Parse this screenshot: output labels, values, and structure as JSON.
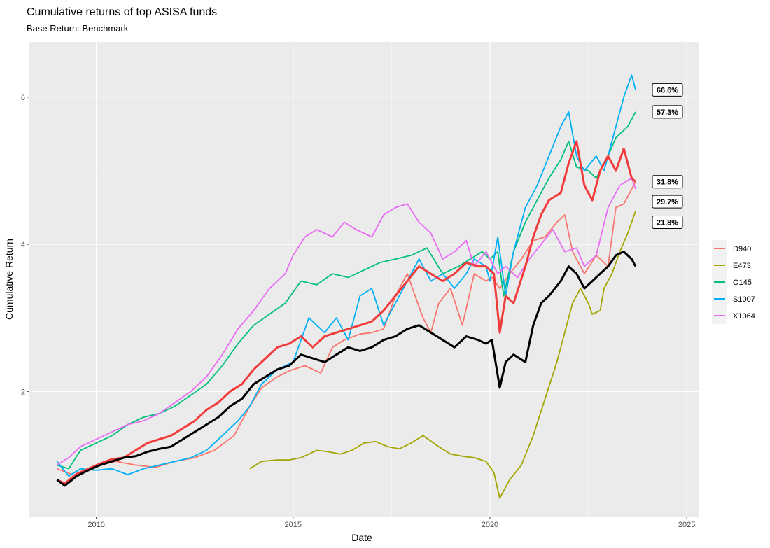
{
  "chart_data": {
    "type": "line",
    "title": "Cumulative returns of top ASISA funds",
    "subtitle": "Base Return: Benchmark",
    "xlabel": "Date",
    "ylabel": "Cumulative Return",
    "xlim": [
      2008.3,
      2025.3
    ],
    "ylim": [
      0.3,
      6.75
    ],
    "x_ticks": [
      2010,
      2015,
      2020,
      2025
    ],
    "y_ticks": [
      2,
      4,
      6
    ],
    "grid": true,
    "legend_position": "right",
    "series": [
      {
        "name": "D940",
        "color": "#F8766D",
        "x": [
          2009.0,
          2009.5,
          2010.0,
          2010.5,
          2011.0,
          2011.5,
          2012.0,
          2012.5,
          2013.0,
          2013.5,
          2013.9,
          2014.2,
          2014.6,
          2014.9,
          2015.3,
          2015.7,
          2016.0,
          2016.3,
          2016.7,
          2017.0,
          2017.3,
          2017.6,
          2017.9,
          2018.1,
          2018.3,
          2018.5,
          2018.7,
          2019.0,
          2019.3,
          2019.6,
          2019.9,
          2020.05,
          2020.25,
          2020.5,
          2020.8,
          2021.1,
          2021.4,
          2021.7,
          2021.9,
          2022.1,
          2022.4,
          2022.7,
          2023.0,
          2023.2,
          2023.4,
          2023.7
        ],
        "values": [
          0.95,
          0.85,
          1.0,
          1.05,
          1.0,
          0.97,
          1.05,
          1.1,
          1.2,
          1.4,
          1.8,
          2.05,
          2.2,
          2.28,
          2.35,
          2.25,
          2.6,
          2.7,
          2.78,
          2.8,
          2.85,
          3.3,
          3.6,
          3.3,
          3.0,
          2.8,
          3.2,
          3.4,
          2.9,
          3.6,
          3.5,
          3.55,
          3.4,
          3.6,
          3.8,
          4.05,
          4.1,
          4.3,
          4.4,
          3.9,
          3.6,
          3.85,
          3.7,
          4.5,
          4.55,
          4.85
        ]
      },
      {
        "name": "E473",
        "color": "#A3A500",
        "x": [
          2013.9,
          2014.2,
          2014.6,
          2014.9,
          2015.2,
          2015.6,
          2015.9,
          2016.2,
          2016.5,
          2016.8,
          2017.1,
          2017.4,
          2017.7,
          2018.0,
          2018.3,
          2018.7,
          2019.0,
          2019.3,
          2019.6,
          2019.9,
          2020.1,
          2020.25,
          2020.5,
          2020.8,
          2021.1,
          2021.4,
          2021.7,
          2021.9,
          2022.1,
          2022.3,
          2022.5,
          2022.6,
          2022.8,
          2022.9,
          2023.1,
          2023.3,
          2023.5,
          2023.7
        ],
        "values": [
          0.95,
          1.05,
          1.07,
          1.07,
          1.1,
          1.2,
          1.18,
          1.15,
          1.2,
          1.3,
          1.32,
          1.25,
          1.22,
          1.3,
          1.4,
          1.25,
          1.15,
          1.12,
          1.1,
          1.05,
          0.9,
          0.55,
          0.8,
          1.0,
          1.4,
          1.9,
          2.4,
          2.8,
          3.2,
          3.4,
          3.2,
          3.05,
          3.1,
          3.4,
          3.6,
          3.9,
          4.15,
          4.45
        ]
      },
      {
        "name": "O145",
        "color": "#00BF7D",
        "x": [
          2009.0,
          2009.3,
          2009.6,
          2010.0,
          2010.4,
          2010.8,
          2011.2,
          2011.6,
          2012.0,
          2012.4,
          2012.8,
          2013.2,
          2013.6,
          2014.0,
          2014.4,
          2014.8,
          2015.2,
          2015.6,
          2016.0,
          2016.4,
          2016.8,
          2017.2,
          2017.6,
          2018.0,
          2018.4,
          2018.8,
          2019.2,
          2019.5,
          2019.8,
          2020.0,
          2020.2,
          2020.35,
          2020.6,
          2020.9,
          2021.2,
          2021.5,
          2021.8,
          2022.0,
          2022.2,
          2022.5,
          2022.7,
          2023.0,
          2023.2,
          2023.5,
          2023.7
        ],
        "values": [
          1.0,
          0.95,
          1.2,
          1.3,
          1.4,
          1.55,
          1.65,
          1.7,
          1.8,
          1.95,
          2.1,
          2.35,
          2.65,
          2.9,
          3.05,
          3.2,
          3.5,
          3.45,
          3.6,
          3.55,
          3.65,
          3.75,
          3.8,
          3.85,
          3.95,
          3.6,
          3.7,
          3.8,
          3.9,
          3.8,
          3.9,
          3.3,
          3.9,
          4.3,
          4.6,
          4.9,
          5.15,
          5.4,
          5.05,
          5.0,
          4.9,
          5.2,
          5.45,
          5.6,
          5.8
        ]
      },
      {
        "name": "S1007",
        "color": "#00B0F6",
        "x": [
          2009.0,
          2009.3,
          2009.6,
          2010.0,
          2010.4,
          2010.8,
          2011.2,
          2011.6,
          2012.0,
          2012.4,
          2012.8,
          2013.2,
          2013.6,
          2013.9,
          2014.2,
          2014.6,
          2015.0,
          2015.4,
          2015.8,
          2016.1,
          2016.4,
          2016.7,
          2017.0,
          2017.3,
          2017.6,
          2017.9,
          2018.2,
          2018.5,
          2018.8,
          2019.1,
          2019.4,
          2019.6,
          2019.9,
          2020.0,
          2020.2,
          2020.4,
          2020.6,
          2020.9,
          2021.2,
          2021.5,
          2021.8,
          2022.0,
          2022.2,
          2022.4,
          2022.7,
          2022.9,
          2023.2,
          2023.4,
          2023.6,
          2023.7
        ],
        "values": [
          1.05,
          0.85,
          0.95,
          0.93,
          0.95,
          0.87,
          0.95,
          1.0,
          1.05,
          1.1,
          1.2,
          1.4,
          1.6,
          1.8,
          2.1,
          2.3,
          2.4,
          3.0,
          2.8,
          3.0,
          2.7,
          3.3,
          3.4,
          2.9,
          3.2,
          3.5,
          3.8,
          3.5,
          3.6,
          3.4,
          3.6,
          3.8,
          3.7,
          3.5,
          4.1,
          3.3,
          3.9,
          4.5,
          4.8,
          5.2,
          5.6,
          5.8,
          5.2,
          5.0,
          5.2,
          5.0,
          5.6,
          6.0,
          6.3,
          6.1
        ]
      },
      {
        "name": "X1064",
        "color": "#E76BF3",
        "x": [
          2009.0,
          2009.3,
          2009.6,
          2010.0,
          2010.4,
          2010.8,
          2011.2,
          2011.6,
          2012.0,
          2012.4,
          2012.8,
          2013.2,
          2013.6,
          2014.0,
          2014.4,
          2014.8,
          2015.0,
          2015.3,
          2015.6,
          2016.0,
          2016.3,
          2016.6,
          2017.0,
          2017.3,
          2017.6,
          2017.9,
          2018.2,
          2018.5,
          2018.8,
          2019.1,
          2019.4,
          2019.6,
          2019.9,
          2020.2,
          2020.4,
          2020.7,
          2021.0,
          2021.3,
          2021.6,
          2021.9,
          2022.2,
          2022.4,
          2022.7,
          2023.0,
          2023.3,
          2023.6,
          2023.7
        ],
        "values": [
          1.0,
          1.1,
          1.25,
          1.35,
          1.45,
          1.55,
          1.6,
          1.7,
          1.85,
          2.0,
          2.2,
          2.5,
          2.85,
          3.1,
          3.4,
          3.6,
          3.85,
          4.1,
          4.2,
          4.1,
          4.3,
          4.2,
          4.1,
          4.4,
          4.5,
          4.55,
          4.3,
          4.15,
          3.8,
          3.9,
          4.05,
          3.7,
          3.9,
          3.6,
          3.7,
          3.55,
          3.8,
          4.0,
          4.2,
          3.9,
          3.95,
          3.7,
          3.85,
          4.5,
          4.8,
          4.9,
          4.75
        ]
      },
      {
        "name": "",
        "color": "#F23C3C",
        "width": 3,
        "x": [
          2009.0,
          2009.2,
          2009.5,
          2009.8,
          2010.1,
          2010.4,
          2010.7,
          2011.0,
          2011.3,
          2011.6,
          2011.9,
          2012.2,
          2012.5,
          2012.8,
          2013.1,
          2013.4,
          2013.7,
          2014.0,
          2014.3,
          2014.6,
          2014.9,
          2015.2,
          2015.5,
          2015.8,
          2016.1,
          2016.4,
          2016.7,
          2017.0,
          2017.3,
          2017.6,
          2017.9,
          2018.2,
          2018.5,
          2018.8,
          2019.1,
          2019.4,
          2019.7,
          2019.9,
          2020.1,
          2020.25,
          2020.4,
          2020.6,
          2020.9,
          2021.1,
          2021.3,
          2021.5,
          2021.8,
          2022.0,
          2022.2,
          2022.4,
          2022.6,
          2022.8,
          2023.0,
          2023.2,
          2023.4,
          2023.6,
          2023.7
        ],
        "values": [
          0.8,
          0.75,
          0.88,
          0.95,
          1.02,
          1.08,
          1.1,
          1.2,
          1.3,
          1.35,
          1.4,
          1.5,
          1.6,
          1.75,
          1.85,
          2.0,
          2.1,
          2.3,
          2.45,
          2.6,
          2.65,
          2.75,
          2.6,
          2.75,
          2.8,
          2.85,
          2.9,
          2.95,
          3.1,
          3.3,
          3.5,
          3.7,
          3.6,
          3.5,
          3.6,
          3.75,
          3.7,
          3.7,
          3.6,
          2.8,
          3.3,
          3.2,
          3.7,
          4.1,
          4.4,
          4.6,
          4.7,
          5.1,
          5.4,
          4.8,
          4.6,
          5.0,
          5.2,
          5.0,
          5.3,
          4.9,
          4.85
        ]
      },
      {
        "name": "",
        "color": "#000000",
        "width": 3,
        "x": [
          2009.0,
          2009.2,
          2009.5,
          2009.8,
          2010.1,
          2010.4,
          2010.7,
          2011.0,
          2011.3,
          2011.6,
          2011.9,
          2012.2,
          2012.5,
          2012.8,
          2013.1,
          2013.4,
          2013.7,
          2014.0,
          2014.3,
          2014.6,
          2014.9,
          2015.2,
          2015.5,
          2015.8,
          2016.1,
          2016.4,
          2016.7,
          2017.0,
          2017.3,
          2017.6,
          2017.9,
          2018.2,
          2018.5,
          2018.8,
          2019.1,
          2019.4,
          2019.7,
          2019.9,
          2020.05,
          2020.25,
          2020.4,
          2020.6,
          2020.9,
          2021.1,
          2021.3,
          2021.5,
          2021.8,
          2022.0,
          2022.2,
          2022.4,
          2022.6,
          2022.8,
          2023.0,
          2023.2,
          2023.4,
          2023.6,
          2023.7
        ],
        "values": [
          0.8,
          0.72,
          0.85,
          0.93,
          1.0,
          1.05,
          1.1,
          1.12,
          1.18,
          1.22,
          1.25,
          1.35,
          1.45,
          1.55,
          1.65,
          1.8,
          1.9,
          2.1,
          2.2,
          2.3,
          2.35,
          2.5,
          2.45,
          2.4,
          2.5,
          2.6,
          2.55,
          2.6,
          2.7,
          2.75,
          2.85,
          2.9,
          2.8,
          2.7,
          2.6,
          2.75,
          2.7,
          2.65,
          2.7,
          2.05,
          2.4,
          2.5,
          2.4,
          2.9,
          3.2,
          3.3,
          3.5,
          3.7,
          3.6,
          3.4,
          3.5,
          3.6,
          3.7,
          3.85,
          3.9,
          3.8,
          3.7
        ]
      }
    ],
    "end_labels": [
      {
        "text": "66.6%",
        "y": 6.1
      },
      {
        "text": "57.3%",
        "y": 5.8
      },
      {
        "text": "31.8%",
        "y": 4.85
      },
      {
        "text": "29.7%",
        "y": 4.58
      },
      {
        "text": "21.8%",
        "y": 4.3
      }
    ],
    "legend": [
      {
        "label": "D940",
        "color": "#F8766D"
      },
      {
        "label": "E473",
        "color": "#A3A500"
      },
      {
        "label": "O145",
        "color": "#00BF7D"
      },
      {
        "label": "S1007",
        "color": "#00B0F6"
      },
      {
        "label": "X1064",
        "color": "#E76BF3"
      }
    ]
  }
}
